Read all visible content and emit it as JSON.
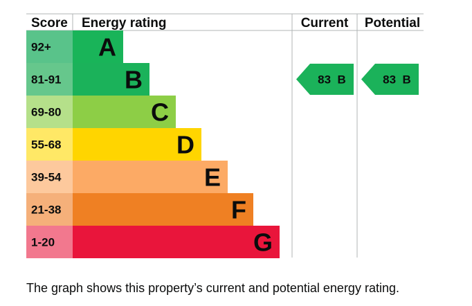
{
  "headers": {
    "score": "Score",
    "energy_rating": "Energy rating",
    "current": "Current",
    "potential": "Potential"
  },
  "chart_data": {
    "type": "bar",
    "bands": [
      {
        "score": "92+",
        "letter": "A",
        "color": "#19b459",
        "score_bg": "#59c38a"
      },
      {
        "score": "81-91",
        "letter": "B",
        "color": "#1bb25a",
        "score_bg": "#66c78c"
      },
      {
        "score": "69-80",
        "letter": "C",
        "color": "#8dce46",
        "score_bg": "#b5e08a"
      },
      {
        "score": "55-68",
        "letter": "D",
        "color": "#ffd500",
        "score_bg": "#ffe866"
      },
      {
        "score": "39-54",
        "letter": "E",
        "color": "#fcaa65",
        "score_bg": "#fdc99d"
      },
      {
        "score": "21-38",
        "letter": "F",
        "color": "#ef8023",
        "score_bg": "#f5b07a"
      },
      {
        "score": "1-20",
        "letter": "G",
        "color": "#e9153b",
        "score_bg": "#f2788e"
      }
    ],
    "current": {
      "value": 83,
      "band": "B",
      "label": "83  B",
      "color": "#1bb25a"
    },
    "potential": {
      "value": 83,
      "band": "B",
      "label": "83  B",
      "color": "#1bb25a"
    }
  },
  "caption": "The graph shows this property’s current and potential energy rating."
}
